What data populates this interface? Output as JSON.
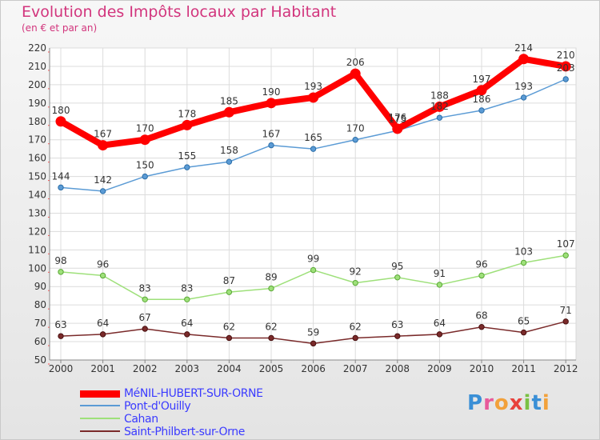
{
  "title": "Evolution des Impôts locaux par Habitant",
  "subtitle": "(en € et par an)",
  "logo": "Proxiti",
  "chart_data": {
    "type": "line",
    "title": "Evolution des Impôts locaux par Habitant",
    "subtitle": "(en € et par an)",
    "xlabel": "",
    "ylabel": "",
    "ylim": [
      50,
      220
    ],
    "ytick_step": 10,
    "grid": true,
    "legend_position": "bottom-left",
    "x": [
      "2000",
      "2001",
      "2002",
      "2003",
      "2004",
      "2005",
      "2006",
      "2007",
      "2008",
      "2009",
      "2010",
      "2011",
      "2012"
    ],
    "series": [
      {
        "name": "MéNIL-HUBERT-SUR-ORNE",
        "color": "#ff0000",
        "values": [
          180,
          167,
          170,
          178,
          185,
          190,
          193,
          206,
          176,
          188,
          197,
          214,
          210
        ]
      },
      {
        "name": "Pont-d'Ouilly",
        "color": "#5b9bd5",
        "values": [
          144,
          142,
          150,
          155,
          158,
          167,
          165,
          170,
          175,
          182,
          186,
          193,
          203
        ]
      },
      {
        "name": "Cahan",
        "color": "#9ee07a",
        "values": [
          98,
          96,
          83,
          83,
          87,
          89,
          99,
          92,
          95,
          91,
          96,
          103,
          107
        ]
      },
      {
        "name": "Saint-Philbert-sur-Orne",
        "color": "#7a2a2a",
        "values": [
          63,
          64,
          67,
          64,
          62,
          62,
          59,
          62,
          63,
          64,
          68,
          65,
          71
        ]
      }
    ]
  }
}
